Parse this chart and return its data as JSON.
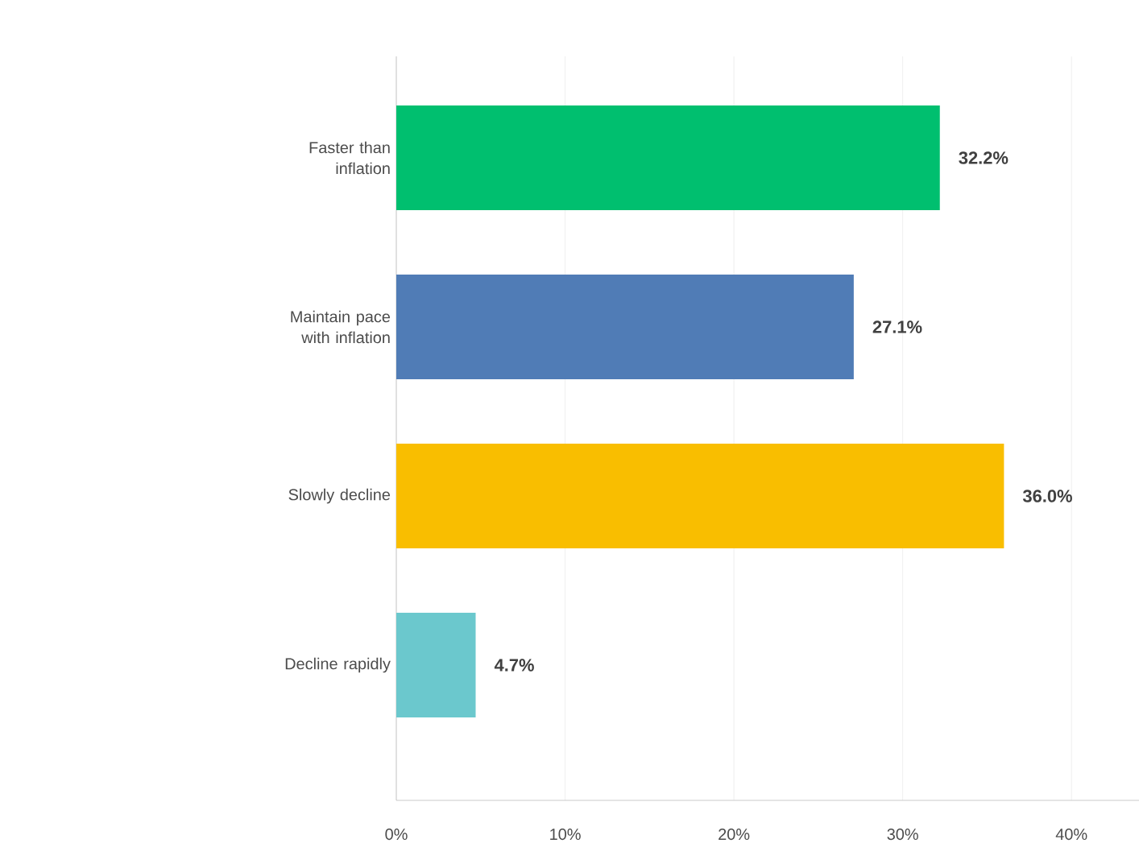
{
  "chart_data": {
    "type": "bar",
    "orientation": "horizontal",
    "categories": [
      "Faster than inflation",
      "Maintain pace with inflation",
      "Slowly decline",
      "Decline rapidly"
    ],
    "values": [
      32.2,
      27.1,
      36.0,
      4.7
    ],
    "colors": [
      "#00bf6f",
      "#507cb6",
      "#f9be00",
      "#6bc8cd"
    ],
    "value_labels": [
      "32.2%",
      "27.1%",
      "36.0%",
      "4.7%"
    ],
    "xlim": [
      0,
      44
    ],
    "xticks": [
      {
        "value": 0,
        "label": "0%"
      },
      {
        "value": 10,
        "label": "10%"
      },
      {
        "value": 20,
        "label": "20%"
      },
      {
        "value": 30,
        "label": "30%"
      },
      {
        "value": 40,
        "label": "40%"
      }
    ],
    "grid": "x"
  }
}
